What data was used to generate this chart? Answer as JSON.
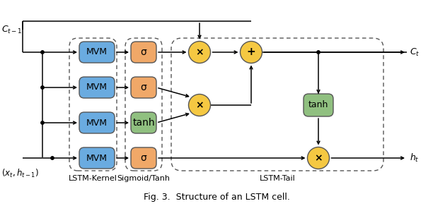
{
  "title": "Fig. 3.  Structure of an LSTM cell.",
  "mvm_color": "#6aabe0",
  "sigma_color": "#f0a868",
  "tanh_color": "#90c080",
  "circle_color": "#f5c842",
  "bg_color": "white",
  "label_lstm_kernel": "LSTM-Kernel",
  "label_sigmoid_tanh": "Sigmoid/Tanh",
  "label_lstm_tail": "LSTM-Tail",
  "label_ct_minus1": "$C_{t-1}$",
  "label_ct": "$C_t$",
  "label_xt_ht_minus1": "$(x_t,h_{t-1})$",
  "label_ht": "$h_t$",
  "sigma_char": "σ"
}
